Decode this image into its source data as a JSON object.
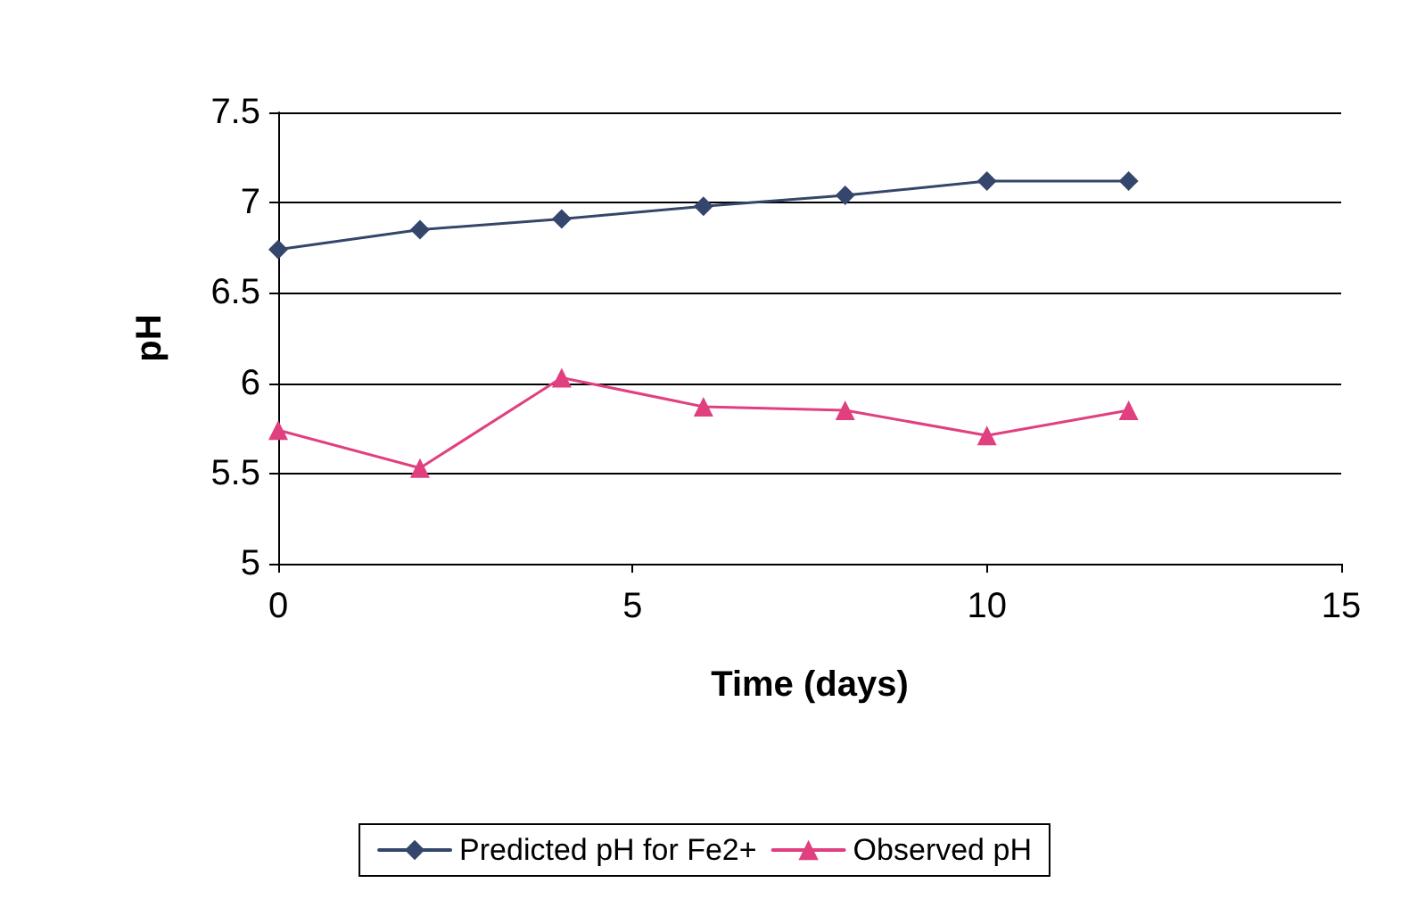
{
  "chart_data": {
    "type": "line",
    "xlabel": "Time (days)",
    "ylabel": "pH",
    "xlim": [
      0,
      15
    ],
    "xticks": [
      0,
      5,
      10,
      15
    ],
    "ylim": [
      5,
      7.5
    ],
    "yticks": [
      5,
      5.5,
      6,
      6.5,
      7,
      7.5
    ],
    "grid": "y",
    "legend": "bottom",
    "x": [
      0,
      2,
      4,
      6,
      8,
      10,
      12
    ],
    "series": [
      {
        "name": "Predicted pH for Fe2+",
        "color": "#34466b",
        "marker": "diamond",
        "values": [
          6.74,
          6.85,
          6.91,
          6.98,
          7.04,
          7.12,
          7.12
        ]
      },
      {
        "name": "Observed pH",
        "color": "#e0407f",
        "marker": "triangle",
        "values": [
          5.74,
          5.53,
          6.03,
          5.87,
          5.85,
          5.71,
          5.85
        ]
      }
    ]
  }
}
